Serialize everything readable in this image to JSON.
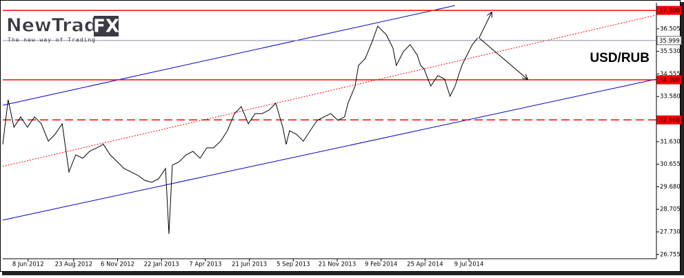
{
  "logo": {
    "name": "NewTrade",
    "mark": "FX",
    "tagline": "The new way of Trading"
  },
  "chart_data": {
    "type": "line",
    "title": "USD/RUB",
    "xlim": [
      0,
      193.5
    ],
    "ylim": [
      26.6,
      37.6
    ],
    "xticks": [
      {
        "value": 7.5,
        "label": "8 Jun 2012"
      },
      {
        "value": 21,
        "label": "23 Aug 2012"
      },
      {
        "value": 34,
        "label": "6 Nov 2012"
      },
      {
        "value": 47,
        "label": "22 Jan 2013"
      },
      {
        "value": 60,
        "label": "7 Apr 2013"
      },
      {
        "value": 73,
        "label": "21 Jun 2013"
      },
      {
        "value": 86,
        "label": "5 Sep 2013"
      },
      {
        "value": 99,
        "label": "21 Nov 2013"
      },
      {
        "value": 112,
        "label": "9 Feb 2014"
      },
      {
        "value": 125,
        "label": "25 Apr 2014"
      },
      {
        "value": 138,
        "label": "9 Jul 2014"
      }
    ],
    "yticks": [
      36.505,
      {
        "value": 35.53,
        "label": "35.530"
      },
      34.555,
      {
        "value": 33.58,
        "label": "33.580"
      },
      {
        "value": 31.63,
        "label": "31.630"
      },
      30.655,
      {
        "value": 29.68,
        "label": "29.680"
      },
      28.705,
      {
        "value": 27.73,
        "label": "27.730"
      },
      26.755
    ],
    "series": [
      {
        "color": "#000000",
        "x": [
          0,
          1.6,
          3.3,
          5.3,
          7.3,
          9.4,
          11.4,
          13.5,
          15.5,
          17.6,
          19.6,
          21.6,
          23.7,
          25.7,
          27.8,
          29.8,
          31.8,
          33.9,
          35.9,
          38,
          40,
          42,
          44.1,
          46.1,
          48.2,
          49.2,
          50.2,
          52.2,
          54.3,
          56.3,
          58.4,
          60.4,
          62.4,
          64.5,
          66.5,
          68.6,
          70.6,
          72.7,
          74.7,
          76.7,
          78.8,
          80.8,
          82.9,
          83.9,
          84.9,
          86.9,
          89,
          91,
          93.1,
          95.1,
          97.1,
          99.2,
          101.2,
          102.2,
          104.3,
          105.3,
          107.3,
          109.4,
          111,
          112.4,
          113.5,
          115.5,
          116.5,
          118.6,
          120.6,
          122.7,
          123.7,
          124.7,
          126.7,
          128.8,
          130.8,
          132.4,
          133.9,
          134.9,
          135.9,
          136.9,
          139,
          140.6
        ],
        "values": [
          31.51,
          33.44,
          32.25,
          32.7,
          32.25,
          32.7,
          32.4,
          31.65,
          31.95,
          32.4,
          30.32,
          31.06,
          30.91,
          31.21,
          31.36,
          31.51,
          31.06,
          30.76,
          30.47,
          30.32,
          30.17,
          29.96,
          29.87,
          30.02,
          30.47,
          27.64,
          30.61,
          30.76,
          31.06,
          31.21,
          30.91,
          31.36,
          31.36,
          31.65,
          32.1,
          32.84,
          33.14,
          32.4,
          32.84,
          32.84,
          32.99,
          33.29,
          32.25,
          31.51,
          32.1,
          31.95,
          31.65,
          32.1,
          32.55,
          32.7,
          32.84,
          32.55,
          32.7,
          33.29,
          34.03,
          34.92,
          35.22,
          35.97,
          36.62,
          36.41,
          36.26,
          35.67,
          34.92,
          35.52,
          35.82,
          35.37,
          34.92,
          34.78,
          34.03,
          34.48,
          34.33,
          33.59,
          34.03,
          34.48,
          34.92,
          35.22,
          35.82,
          36.11
        ]
      }
    ],
    "levels": [
      {
        "value": 37.3,
        "label": "37.300",
        "color": "#ff0000",
        "style": "solid"
      },
      {
        "value": 35.999,
        "label": "35.999",
        "color": "#8c8ca0",
        "style": "thin"
      },
      {
        "value": 34.3,
        "label": "34.300",
        "color": "#ff0000",
        "style": "solid"
      },
      {
        "value": 32.568,
        "label": "32.568",
        "color": "#ff0000",
        "style": "dashed"
      }
    ],
    "trendlines": [
      {
        "color": "#0000c8",
        "style": "solid",
        "x": [
          0,
          133.9
        ],
        "y": [
          33.2,
          37.51
        ]
      },
      {
        "color": "#0000c8",
        "style": "solid",
        "x": [
          0,
          193.5
        ],
        "y": [
          28.24,
          34.33
        ]
      },
      {
        "color": "#ff0000",
        "style": "dotted",
        "x": [
          0,
          193.5
        ],
        "y": [
          30.56,
          37.1
        ]
      }
    ],
    "arrows": [
      {
        "color": "#000000",
        "x": [
          141,
          144.7
        ],
        "y": [
          36.11,
          37.21
        ]
      },
      {
        "color": "#000000",
        "x": [
          141,
          155.3
        ],
        "y": [
          36.11,
          34.33
        ]
      }
    ]
  }
}
